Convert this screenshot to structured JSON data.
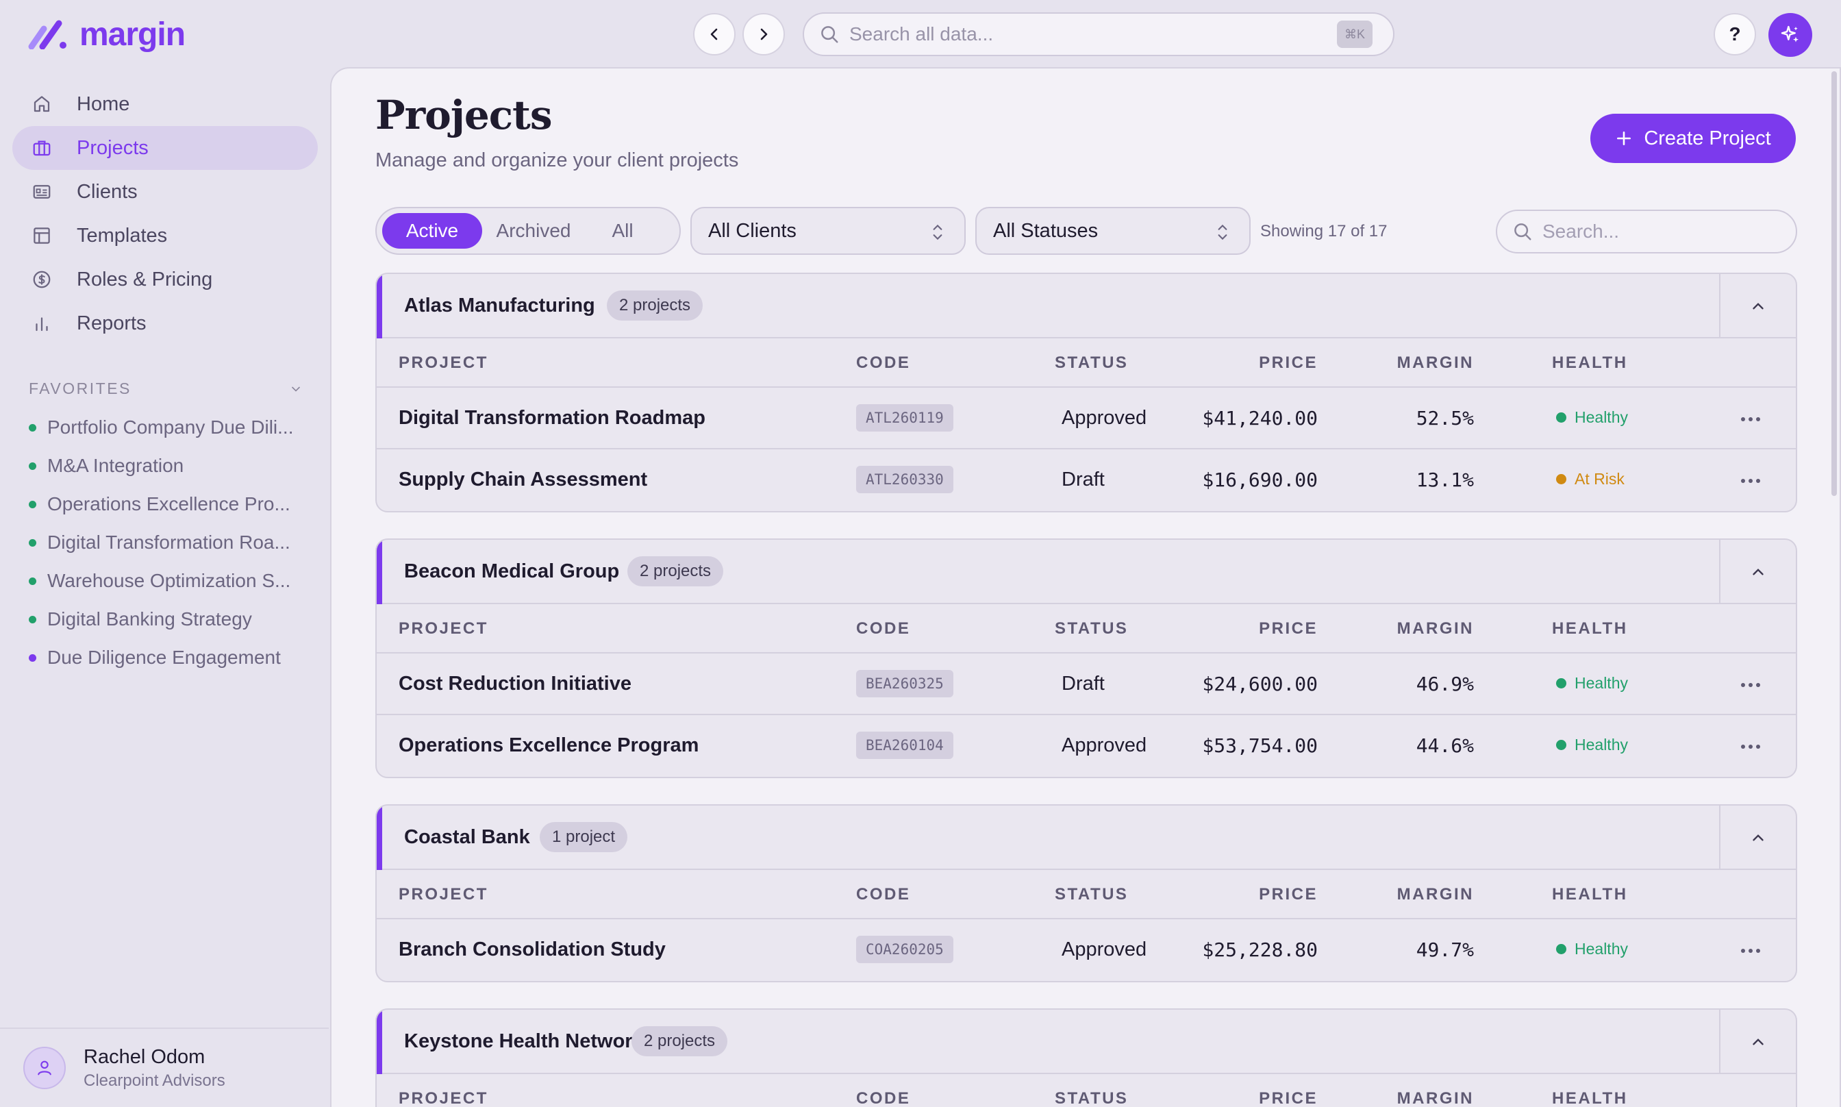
{
  "app": {
    "name": "margin",
    "brand_color": "#7c3aed"
  },
  "topbar": {
    "search_placeholder": "Search all data...",
    "search_shortcut": "⌘K",
    "help_label": "?"
  },
  "sidebar": {
    "items": [
      {
        "label": "Home",
        "icon": "home-icon"
      },
      {
        "label": "Projects",
        "icon": "briefcase-icon",
        "active": true
      },
      {
        "label": "Clients",
        "icon": "id-card-icon"
      },
      {
        "label": "Templates",
        "icon": "layout-icon"
      },
      {
        "label": "Roles & Pricing",
        "icon": "dollar-circle-icon"
      },
      {
        "label": "Reports",
        "icon": "bar-chart-icon"
      }
    ],
    "favorites_title": "FAVORITES",
    "favorites": [
      {
        "label": "Portfolio Company Due Dili...",
        "dot": "#22a06b"
      },
      {
        "label": "M&A Integration",
        "dot": "#22a06b"
      },
      {
        "label": "Operations Excellence Pro...",
        "dot": "#22a06b"
      },
      {
        "label": "Digital Transformation Roa...",
        "dot": "#22a06b"
      },
      {
        "label": "Warehouse Optimization S...",
        "dot": "#22a06b"
      },
      {
        "label": "Digital Banking Strategy",
        "dot": "#22a06b"
      },
      {
        "label": "Due Diligence Engagement",
        "dot": "#7c3aed"
      }
    ],
    "user": {
      "name": "Rachel Odom",
      "org": "Clearpoint Advisors"
    }
  },
  "page": {
    "title": "Projects",
    "subtitle": "Manage and organize your client projects",
    "create_label": "Create Project",
    "filters": {
      "segments": [
        "Active",
        "Archived",
        "All"
      ],
      "active_segment": "Active",
      "client_select": "All Clients",
      "status_select": "All Statuses",
      "showing": "Showing 17 of 17",
      "search_placeholder": "Search..."
    },
    "columns": [
      "PROJECT",
      "CODE",
      "STATUS",
      "PRICE",
      "MARGIN",
      "HEALTH"
    ],
    "groups": [
      {
        "client": "Atlas Manufacturing",
        "count": "2 projects",
        "rows": [
          {
            "project": "Digital Transformation Roadmap",
            "code": "ATL260119",
            "status": "Approved",
            "price": "$41,240.00",
            "margin": "52.5%",
            "health": "Healthy",
            "health_color": "#22a06b"
          },
          {
            "project": "Supply Chain Assessment",
            "code": "ATL260330",
            "status": "Draft",
            "price": "$16,690.00",
            "margin": "13.1%",
            "health": "At Risk",
            "health_color": "#d08a12"
          }
        ]
      },
      {
        "client": "Beacon Medical Group",
        "count": "2 projects",
        "rows": [
          {
            "project": "Cost Reduction Initiative",
            "code": "BEA260325",
            "status": "Draft",
            "price": "$24,600.00",
            "margin": "46.9%",
            "health": "Healthy",
            "health_color": "#22a06b"
          },
          {
            "project": "Operations Excellence Program",
            "code": "BEA260104",
            "status": "Approved",
            "price": "$53,754.00",
            "margin": "44.6%",
            "health": "Healthy",
            "health_color": "#22a06b"
          }
        ]
      },
      {
        "client": "Coastal Bank",
        "count": "1 project",
        "rows": [
          {
            "project": "Branch Consolidation Study",
            "code": "COA260205",
            "status": "Approved",
            "price": "$25,228.80",
            "margin": "49.7%",
            "health": "Healthy",
            "health_color": "#22a06b"
          }
        ]
      },
      {
        "client": "Keystone Health Network",
        "count": "2 projects",
        "rows": []
      }
    ]
  }
}
